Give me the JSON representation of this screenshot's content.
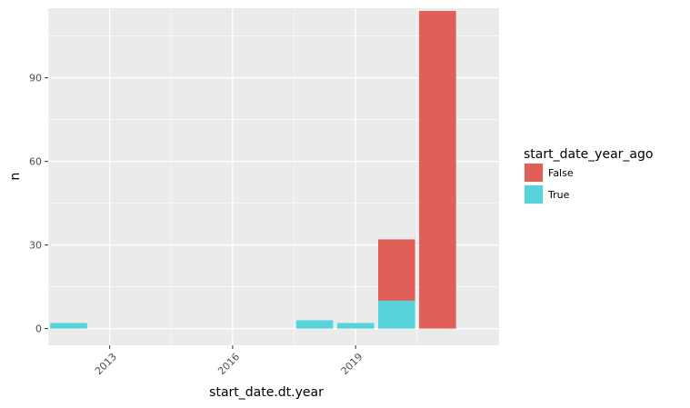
{
  "chart_data": {
    "type": "bar",
    "stacked": true,
    "xlabel": "start_date.dt.year",
    "ylabel": "n",
    "x_ticks": [
      2013,
      2016,
      2019
    ],
    "x_tick_labels": [
      "2013",
      "2016",
      "2019"
    ],
    "y_ticks": [
      0,
      30,
      60,
      90
    ],
    "y_tick_labels": [
      "0",
      "30",
      "60",
      "90"
    ],
    "xlim": [
      2011.5,
      2022.5
    ],
    "ylim": [
      -6,
      115
    ],
    "grid": true,
    "legend": {
      "title": "start_date_year_ago",
      "placement": "right"
    },
    "x": [
      2012,
      2018,
      2019,
      2020,
      2021
    ],
    "series": [
      {
        "name": "False",
        "color": "#e06059",
        "values": [
          0,
          0,
          0,
          22,
          114
        ]
      },
      {
        "name": "True",
        "color": "#59d3db",
        "values": [
          2,
          3,
          2,
          10,
          0
        ]
      }
    ]
  },
  "colors": {
    "panel_background": "#ebebeb",
    "grid": "#ffffff",
    "false_fill": "#e06059",
    "true_fill": "#59d3db"
  }
}
